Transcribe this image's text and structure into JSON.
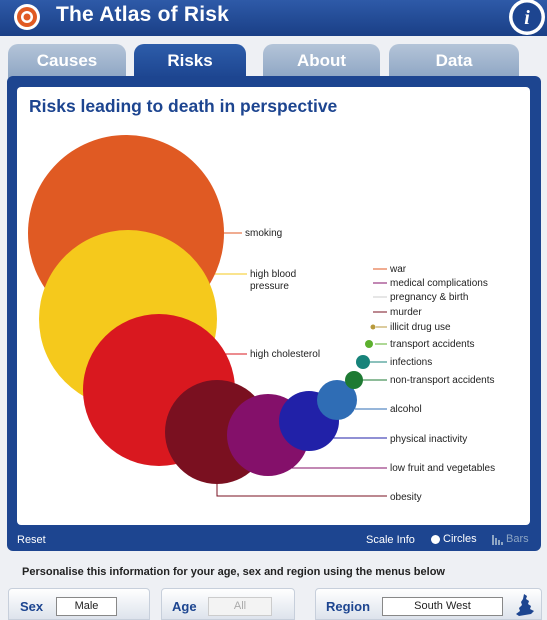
{
  "app": {
    "title": "The Atlas of Risk",
    "info_icon_letter": "i"
  },
  "tabs": [
    {
      "label": "Causes",
      "active": false
    },
    {
      "label": "Risks",
      "active": true
    },
    {
      "label": "About",
      "active": false
    },
    {
      "label": "Data",
      "active": false
    }
  ],
  "panel": {
    "title": "Risks leading to death in perspective"
  },
  "risks": [
    {
      "label": "smoking",
      "color": "#e05a23"
    },
    {
      "label": "high blood\npressure",
      "color": "#f5c91c"
    },
    {
      "label": "high cholesterol",
      "color": "#d9181f"
    },
    {
      "label": "obesity",
      "color": "#7a1020"
    },
    {
      "label": "low fruit and vegetables",
      "color": "#84106a"
    },
    {
      "label": "physical inactivity",
      "color": "#2121a8"
    },
    {
      "label": "alcohol",
      "color": "#2f6db5"
    },
    {
      "label": "non-transport accidents",
      "color": "#1e7a33"
    },
    {
      "label": "infections",
      "color": "#17837a"
    },
    {
      "label": "transport accidents",
      "color": "#5cb02e"
    },
    {
      "label": "illicit drug use",
      "color": "#b89a3c"
    },
    {
      "label": "murder",
      "color": "#7a1020"
    },
    {
      "label": "pregnancy & birth",
      "color": "#cccccc"
    },
    {
      "label": "medical complications",
      "color": "#84106a"
    },
    {
      "label": "war",
      "color": "#e05a23"
    }
  ],
  "controls": {
    "reset_label": "Reset",
    "scale_info_label": "Scale Info",
    "circles_label": "Circles",
    "bars_label": "Bars",
    "selected_view": "Circles"
  },
  "personalise": {
    "text": "Personalise this information for your age, sex and region using the menus below",
    "sex": {
      "label": "Sex",
      "value": "Male"
    },
    "age": {
      "label": "Age",
      "value": "All"
    },
    "region": {
      "label": "Region",
      "value": "South West"
    }
  },
  "colors": {
    "brand_blue": "#1d4590",
    "tab_inactive": "#a6b9d1"
  }
}
